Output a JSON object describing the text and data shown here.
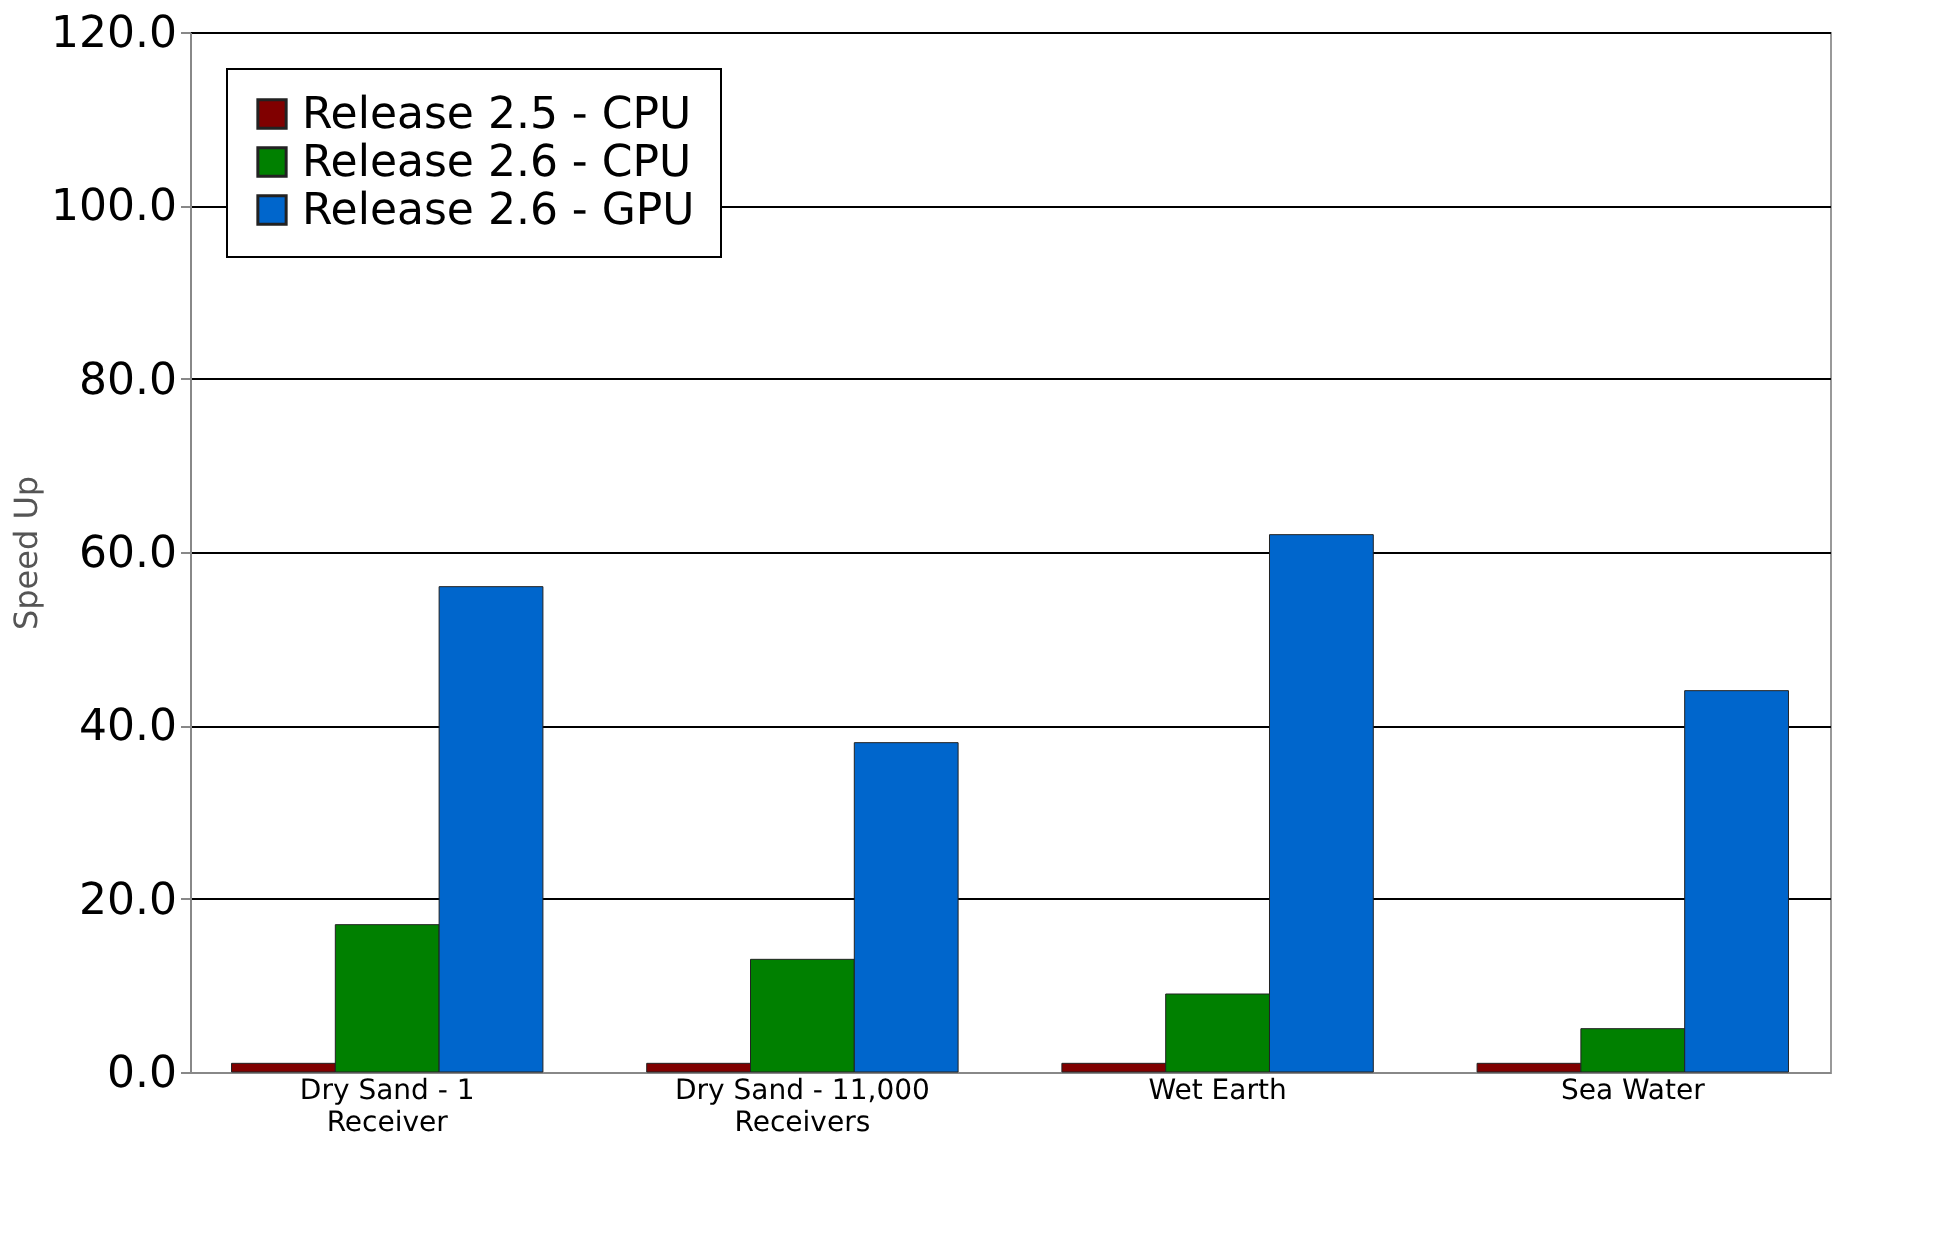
{
  "chart_data": {
    "type": "bar",
    "ylabel": "Speed Up",
    "categories": [
      "Dry Sand - 1\nReceiver",
      "Dry Sand  - 11,000\nReceivers",
      "Wet Earth",
      "Sea Water"
    ],
    "series": [
      {
        "name": "Release 2.5 - CPU",
        "color": "#800000",
        "values": [
          1,
          1,
          1,
          1
        ]
      },
      {
        "name": "Release 2.6 - CPU",
        "color": "#008000",
        "values": [
          17,
          13,
          9,
          5
        ]
      },
      {
        "name": "Release 2.6 - GPU",
        "color": "#0066cc",
        "values": [
          56,
          38,
          62,
          44
        ]
      }
    ],
    "ylim": [
      0,
      120
    ],
    "yticks": [
      {
        "value": 0,
        "label": "0.0"
      },
      {
        "value": 20,
        "label": "20.0"
      },
      {
        "value": 40,
        "label": "40.0"
      },
      {
        "value": 60,
        "label": "60.0"
      },
      {
        "value": 80,
        "label": "80.0"
      },
      {
        "value": 100,
        "label": "100.0"
      },
      {
        "value": 120,
        "label": "120.0"
      }
    ],
    "grid": "y",
    "legend": "top left"
  }
}
